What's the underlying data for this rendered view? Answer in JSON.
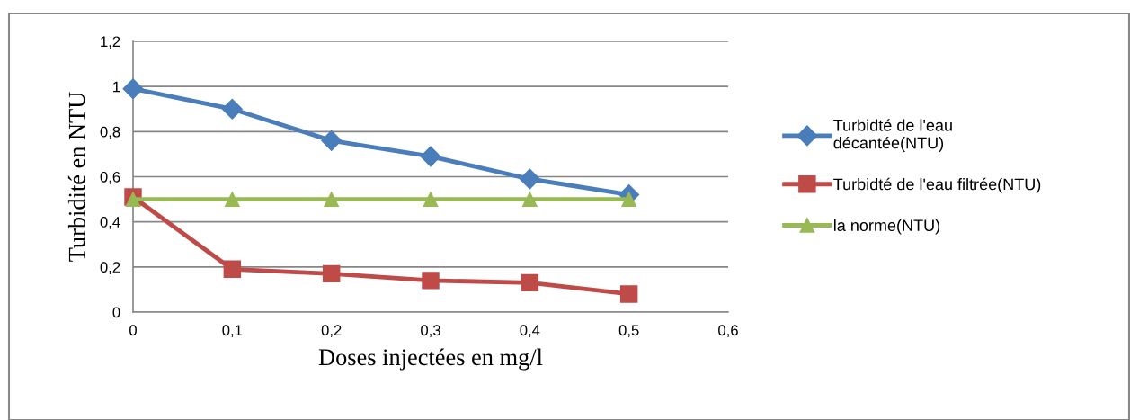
{
  "chart_data": {
    "type": "line",
    "xlabel": "Doses injectées en mg/l",
    "ylabel": "Turbidité en NTU",
    "x": [
      0,
      0.1,
      0.2,
      0.3,
      0.4,
      0.5
    ],
    "series": [
      {
        "name": "Turbidté de l'eau\ndécantée(NTU)",
        "color": "#4a7ebb",
        "marker": "diamond",
        "values": [
          0.99,
          0.9,
          0.76,
          0.69,
          0.59,
          0.52
        ]
      },
      {
        "name": "Turbidté de l'eau filtrée(NTU)",
        "color": "#be4b48",
        "marker": "square",
        "values": [
          0.51,
          0.19,
          0.17,
          0.14,
          0.13,
          0.08
        ]
      },
      {
        "name": "la norme(NTU)",
        "color": "#98b954",
        "marker": "triangle",
        "values": [
          0.5,
          0.5,
          0.5,
          0.5,
          0.5,
          0.5
        ]
      }
    ],
    "xlim": [
      0,
      0.6
    ],
    "xticks": [
      0,
      {
        "value": 0.1,
        "label": "0,1"
      },
      {
        "value": 0.2,
        "label": "0,2"
      },
      {
        "value": 0.3,
        "label": "0,3"
      },
      {
        "value": 0.4,
        "label": "0,4"
      },
      {
        "value": 0.5,
        "label": "0,5"
      },
      {
        "value": 0.6,
        "label": "0,6"
      }
    ],
    "ylim": [
      0,
      1.2
    ],
    "yticks": [
      0,
      {
        "value": 0.2,
        "label": "0,2"
      },
      {
        "value": 0.4,
        "label": "0,4"
      },
      {
        "value": 0.6,
        "label": "0,6"
      },
      {
        "value": 0.8,
        "label": "0,8"
      },
      1,
      {
        "value": 1.2,
        "label": "1,2"
      }
    ],
    "grid": "y",
    "legend": "right",
    "line_style": "solid"
  }
}
